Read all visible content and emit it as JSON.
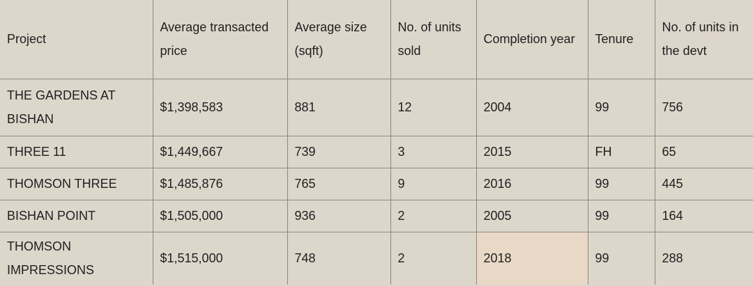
{
  "table": {
    "columns": [
      "Project",
      "Average transacted price",
      "Average size (sqft)",
      "No. of units sold",
      "Completion year",
      "Tenure",
      "No. of units in the devt"
    ],
    "rows": [
      [
        "THE GARDENS AT BISHAN",
        "$1,398,583",
        "881",
        "12",
        "2004",
        "99",
        "756"
      ],
      [
        "THREE 11",
        "$1,449,667",
        "739",
        "3",
        "2015",
        "FH",
        "65"
      ],
      [
        "THOMSON THREE",
        "$1,485,876",
        "765",
        "9",
        "2016",
        "99",
        "445"
      ],
      [
        "BISHAN POINT",
        "$1,505,000",
        "936",
        "2",
        "2005",
        "99",
        "164"
      ],
      [
        "THOMSON IMPRESSIONS",
        "$1,515,000",
        "748",
        "2",
        "2018",
        "99",
        "288"
      ]
    ],
    "highlight_color": "#e8d8c5"
  }
}
